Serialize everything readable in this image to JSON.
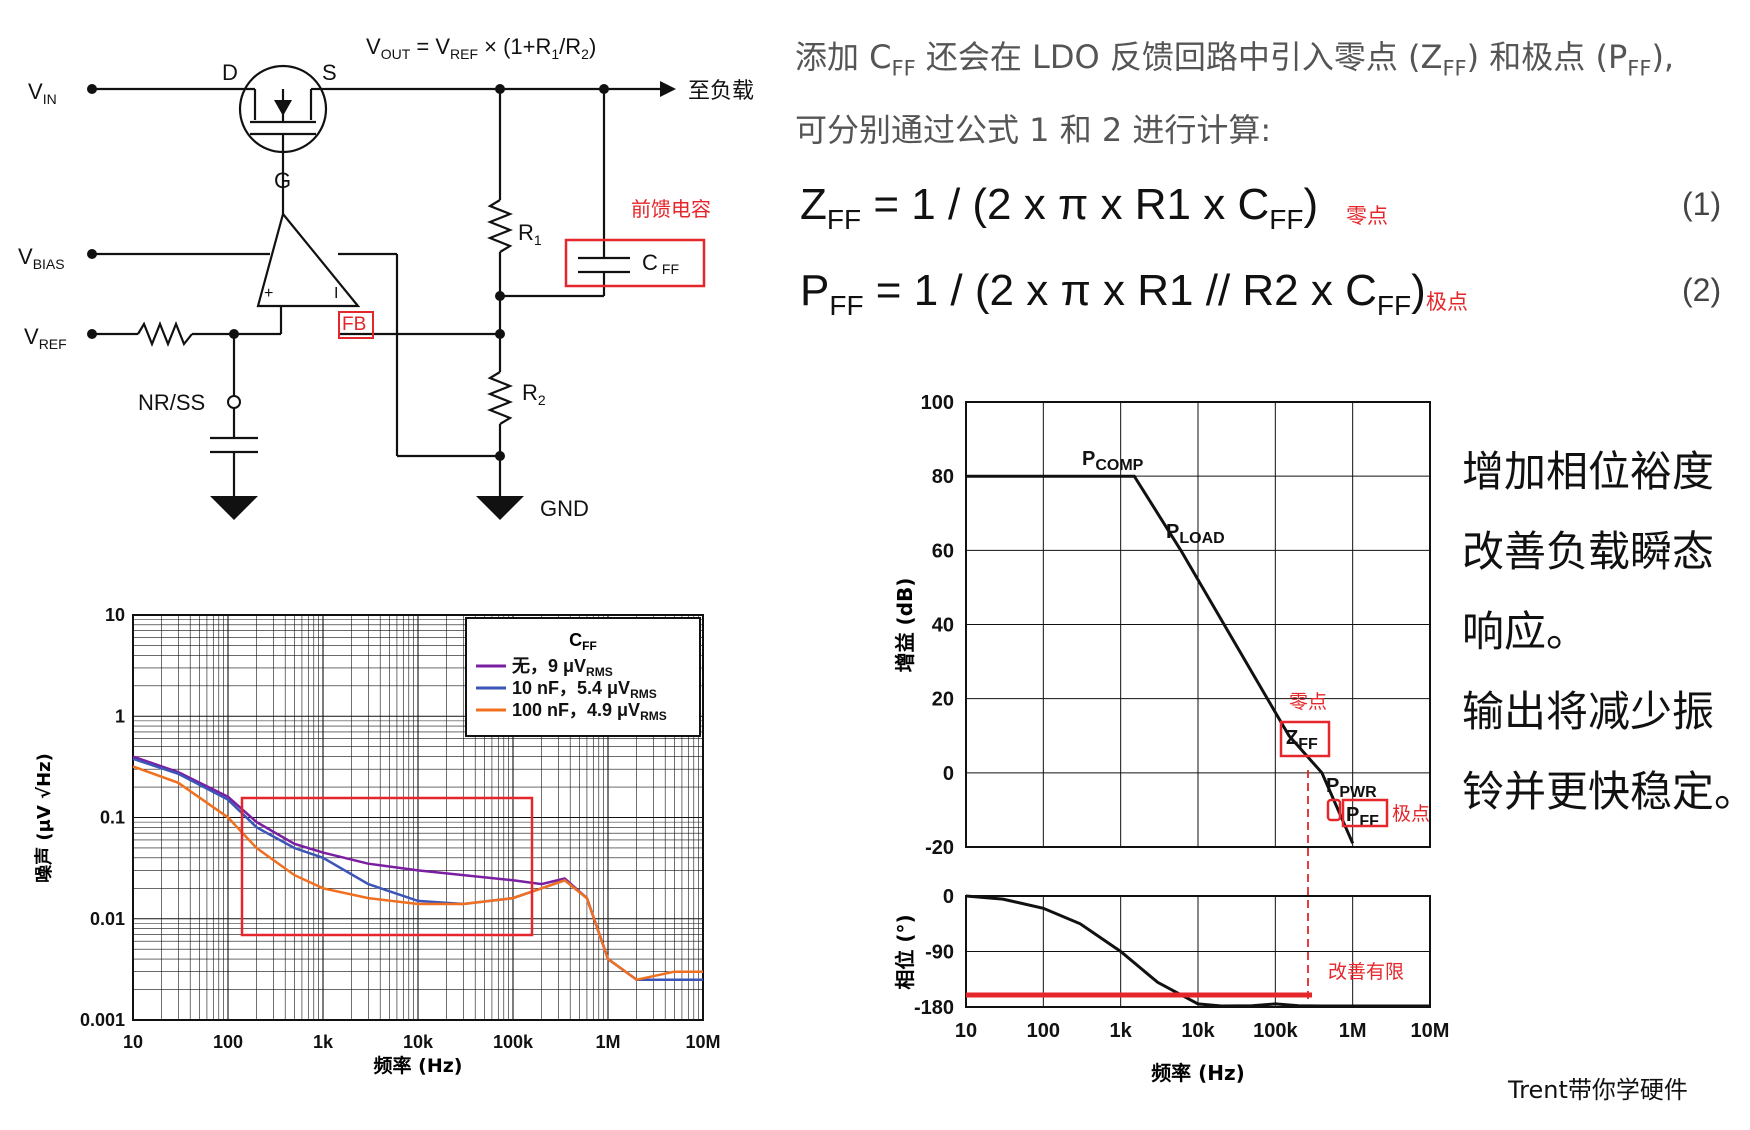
{
  "circuit": {
    "vin": "V",
    "vin_sub": "IN",
    "vbias": "V",
    "vbias_sub": "BIAS",
    "vref": "V",
    "vref_sub": "REF",
    "vout_eq": "V",
    "vout_sub": "OUT",
    "vout_mid": " = V",
    "vout_mid_sub": "REF",
    "vout_tail": " × (1+R",
    "vout_r1": "1",
    "vout_r": "/R",
    "vout_r2": "2",
    "vout_end": ")",
    "d": "D",
    "s": "S",
    "g": "G",
    "to_load": "至负载",
    "r1": "R",
    "r1_sub": "1",
    "r2": "R",
    "r2_sub": "2",
    "cff": "C",
    "cff_sub": "FF",
    "cff_note": "前馈电容",
    "fb": "FB",
    "plus": "+",
    "minus": "I",
    "nrss": "NR/SS",
    "gnd": "GND"
  },
  "intro": {
    "line1_a": "添加 C",
    "line1_sub1": "FF",
    "line1_b": " 还会在 LDO 反馈回路中引入零点 (Z",
    "line1_sub2": "FF",
    "line1_c": ") 和极点 (P",
    "line1_sub3": "FF",
    "line1_d": "),",
    "line2": "可分别通过公式 1 和 2 进行计算:"
  },
  "equations": [
    {
      "lhs": "Z",
      "lhs_sub": "FF",
      "rhs": " = 1 / (2 x π x R1 x C",
      "rhs_sub": "FF",
      "close": ")",
      "note": "零点",
      "num": "(1)"
    },
    {
      "lhs": "P",
      "lhs_sub": "FF",
      "rhs": " = 1 / (2 x π x R1 // R2 x C",
      "rhs_sub": "FF",
      "close": ")",
      "note": "极点",
      "num": "(2)"
    }
  ],
  "notes": [
    "增加相位裕度",
    "改善负载瞬态",
    "响应。",
    "输出将减少振",
    "铃并更快稳定。"
  ],
  "credit": "Trent带你学硬件",
  "chart_data": [
    {
      "type": "line",
      "log_x": true,
      "log_y": true,
      "xlabel": "频率 (Hz)",
      "ylabel": "噪声 (μV √Hz)",
      "x_ticks": [
        "10",
        "100",
        "1k",
        "10k",
        "100k",
        "1M",
        "10M"
      ],
      "y_ticks": [
        "10",
        "1",
        "0.1",
        "0.01",
        "0.001"
      ],
      "xlim": [
        10,
        10000000
      ],
      "ylim": [
        0.001,
        10
      ],
      "legend_title": "C",
      "legend_title_sub": "FF",
      "series": [
        {
          "name": "无，9 μV",
          "name_sub": "RMS",
          "color": "#7b1fa2",
          "x": [
            10,
            30,
            100,
            200,
            500,
            1000,
            3000,
            10000,
            30000,
            100000,
            200000,
            350000,
            600000,
            1000000,
            2000000,
            5000000,
            10000000
          ],
          "y": [
            0.4,
            0.28,
            0.16,
            0.09,
            0.055,
            0.045,
            0.035,
            0.03,
            0.027,
            0.024,
            0.022,
            0.025,
            0.016,
            0.004,
            0.0025,
            0.0025,
            0.0025
          ]
        },
        {
          "name": "10 nF，5.4 μV",
          "name_sub": "RMS",
          "color": "#3b55b8",
          "x": [
            10,
            30,
            100,
            200,
            500,
            1000,
            3000,
            10000,
            30000,
            100000,
            200000,
            350000,
            600000,
            1000000,
            2000000,
            5000000,
            10000000
          ],
          "y": [
            0.38,
            0.27,
            0.15,
            0.08,
            0.05,
            0.04,
            0.022,
            0.015,
            0.014,
            0.016,
            0.02,
            0.024,
            0.016,
            0.004,
            0.0025,
            0.0025,
            0.0025
          ]
        },
        {
          "name": "100 nF，4.9 μV",
          "name_sub": "RMS",
          "color": "#f07020",
          "x": [
            10,
            30,
            100,
            200,
            500,
            1000,
            3000,
            10000,
            30000,
            100000,
            200000,
            350000,
            600000,
            1000000,
            2000000,
            5000000,
            10000000
          ],
          "y": [
            0.32,
            0.22,
            0.1,
            0.05,
            0.027,
            0.02,
            0.016,
            0.014,
            0.014,
            0.016,
            0.02,
            0.024,
            0.016,
            0.004,
            0.0025,
            0.003,
            0.003
          ]
        }
      ]
    },
    {
      "type": "line",
      "log_x": true,
      "xlabel": "频率 (Hz)",
      "x_ticks": [
        "10",
        "100",
        "1k",
        "10k",
        "100k",
        "1M",
        "10M"
      ],
      "panels": [
        {
          "ylabel": "增益 (dB)",
          "y_ticks": [
            "100",
            "80",
            "60",
            "40",
            "20",
            "0",
            "-20"
          ],
          "ylim": [
            -20,
            100
          ],
          "series": [
            {
              "color": "#111111",
              "x": [
                10,
                1500,
                6000,
                150000,
                400000,
                1000000
              ],
              "y": [
                80,
                80,
                60,
                10,
                0,
                -19
              ]
            }
          ],
          "annotations": [
            {
              "text": "P",
              "sub": "COMP"
            },
            {
              "text": "P",
              "sub": "LOAD"
            },
            {
              "text": "Z",
              "sub": "FF",
              "note": "零点"
            },
            {
              "text": "P",
              "sub": "PWR"
            },
            {
              "text": "P",
              "sub": "FF",
              "note": "极点"
            }
          ]
        },
        {
          "ylabel": "相位 (°)",
          "y_ticks": [
            "0",
            "-90",
            "-180"
          ],
          "ylim": [
            -180,
            0
          ],
          "series": [
            {
              "color": "#111111",
              "x": [
                10,
                30,
                100,
                300,
                1000,
                3000,
                10000,
                20000,
                50000,
                100000,
                200000,
                400000,
                1000000,
                10000000
              ],
              "y": [
                0,
                -5,
                -20,
                -45,
                -90,
                -140,
                -175,
                -180,
                -178,
                -175,
                -178,
                -185,
                -185,
                -185
              ]
            }
          ],
          "annotations": [
            {
              "text": "改善有限",
              "color": "#e5262a"
            }
          ]
        }
      ]
    }
  ]
}
